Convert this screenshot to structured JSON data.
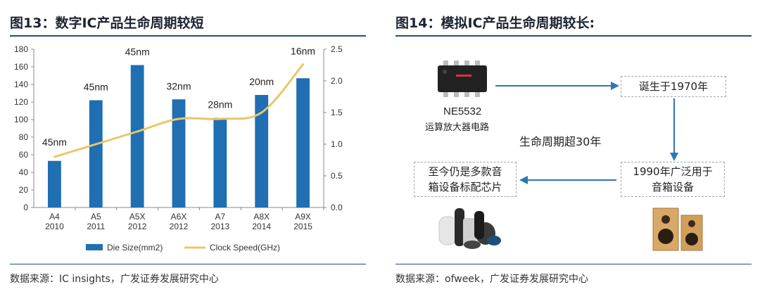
{
  "left": {
    "figure_title": "图13：数字IC产品生命周期较短",
    "source": "数据来源：IC insights，广发证券发展研究中心"
  },
  "chart_data": {
    "type": "bar",
    "title": "",
    "categories": [
      [
        "A4",
        "2010"
      ],
      [
        "A5",
        "2011"
      ],
      [
        "A5X",
        "2012"
      ],
      [
        "A6X",
        "2012"
      ],
      [
        "A7",
        "2013"
      ],
      [
        "A8X",
        "2014"
      ],
      [
        "A9X",
        "2015"
      ]
    ],
    "series": [
      {
        "name": "Die Size(mm2)",
        "type": "bar",
        "axis": "left",
        "color": "#1f6fb2",
        "values": [
          53,
          122,
          162,
          123,
          102,
          128,
          147
        ],
        "labels": [
          "45nm",
          "45nm",
          "45nm",
          "32nm",
          "28nm",
          "20nm",
          "16nm"
        ]
      },
      {
        "name": "Clock Speed(GHz)",
        "type": "line",
        "axis": "right",
        "color": "#e8c76a",
        "values": [
          0.8,
          1.0,
          1.2,
          1.4,
          1.4,
          1.5,
          2.26
        ]
      }
    ],
    "y_left": {
      "min": 0,
      "max": 180,
      "ticks": [
        0,
        20,
        40,
        60,
        80,
        100,
        120,
        140,
        160,
        180
      ]
    },
    "y_right": {
      "min": 0,
      "max": 2.5,
      "ticks": [
        "0.0",
        "0.5",
        "1.0",
        "1.5",
        "2.0",
        "2.5"
      ]
    },
    "legend": "bottom",
    "grid": false
  },
  "right": {
    "figure_title": "图14：模拟IC产品生命周期较长:",
    "source": "数据来源：ofweek，广发证券发展研究中心",
    "chip_name": "NE5532",
    "chip_desc": "运算放大器电路",
    "box_born": "诞生于1970年",
    "box_used": [
      "1990年广泛用于",
      "音箱设备"
    ],
    "box_still": [
      "至今仍是多款音",
      "箱设备标配芯片"
    ],
    "center_text": "生命周期超30年"
  }
}
